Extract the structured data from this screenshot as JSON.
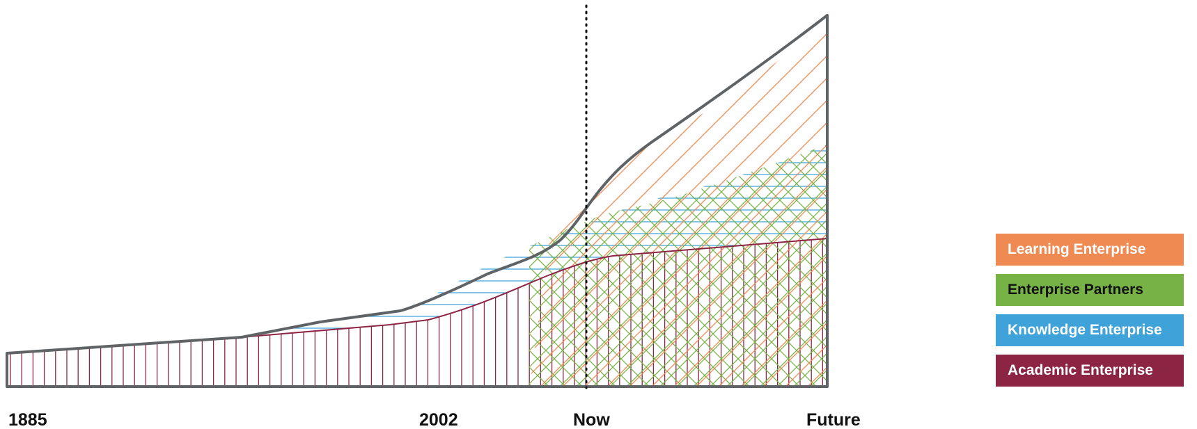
{
  "timeline": {
    "labels": [
      "1885",
      "2002",
      "Now",
      "Future"
    ]
  },
  "legend": [
    {
      "label": "Learning Enterprise",
      "color": "#EE8A52",
      "text_color": "#ffffff"
    },
    {
      "label": "Enterprise Partners",
      "color": "#77B247",
      "text_color": "#111111"
    },
    {
      "label": "Knowledge Enterprise",
      "color": "#3FA3D9",
      "text_color": "#ffffff"
    },
    {
      "label": "Academic Enterprise",
      "color": "#8C2544",
      "text_color": "#ffffff"
    }
  ],
  "colors": {
    "outline": "#5f6366",
    "now_line": "#111111"
  }
}
